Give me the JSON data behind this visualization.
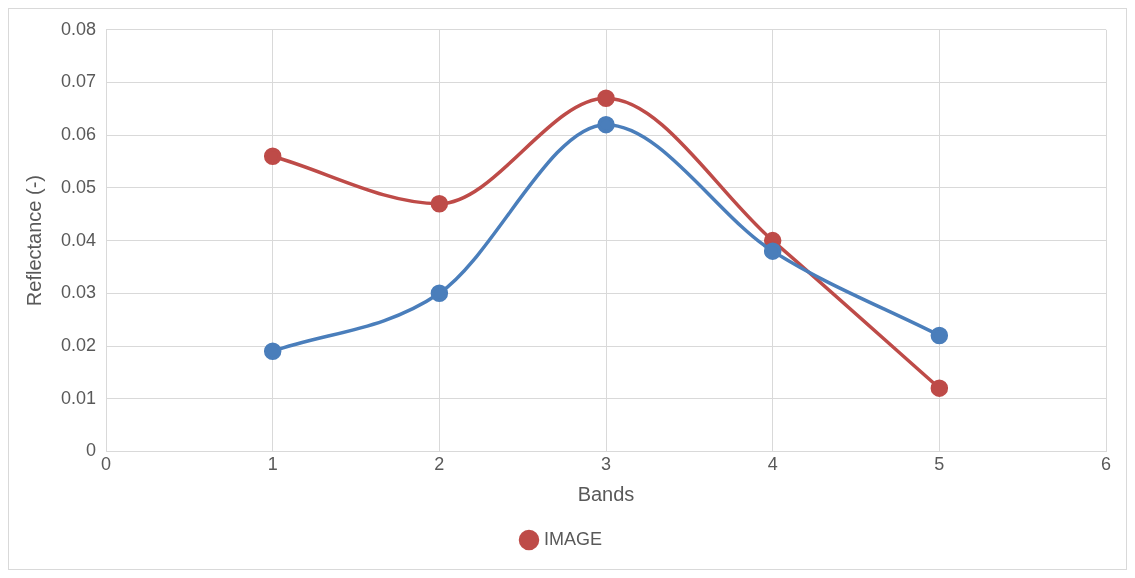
{
  "chart_data": {
    "type": "line",
    "xlabel": "Bands",
    "ylabel": "Reflectance (-)",
    "x": [
      1,
      2,
      3,
      4,
      5
    ],
    "series": [
      {
        "color": "#4a7ebb",
        "values": [
          0.019,
          0.03,
          0.062,
          0.038,
          0.022
        ]
      },
      {
        "name": "IMAGE",
        "color": "#be4b48",
        "values": [
          0.056,
          0.047,
          0.067,
          0.04,
          0.012
        ]
      }
    ],
    "xlim": [
      0,
      6
    ],
    "xticks": [
      0,
      1,
      2,
      3,
      4,
      5,
      6
    ],
    "ylim": [
      0,
      0.08
    ],
    "yticks": [
      0,
      0.01,
      0.02,
      0.03,
      0.04,
      0.05,
      0.06,
      0.07,
      0.08
    ],
    "grid": true,
    "legend": "bottom",
    "marker": "circle",
    "line_style": "solid"
  }
}
